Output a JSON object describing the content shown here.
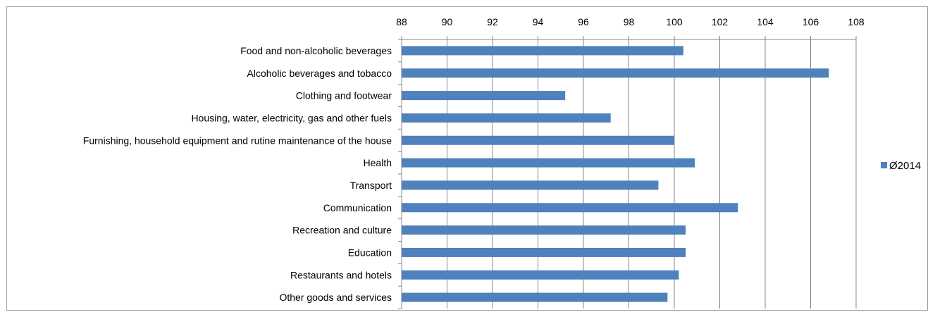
{
  "chart_data": {
    "type": "bar",
    "orientation": "horizontal",
    "title": "",
    "xlabel": "",
    "ylabel": "",
    "xlim": [
      88,
      108
    ],
    "x_ticks": [
      88,
      90,
      92,
      94,
      96,
      98,
      100,
      102,
      104,
      106,
      108
    ],
    "x_axis_position": "top",
    "grid": "vertical major gridlines",
    "legend_position": "right",
    "categories": [
      "Food and non-alcoholic beverages",
      "Alcoholic beverages and tobacco",
      "Clothing and footwear",
      "Housing, water, electricity, gas and other fuels",
      "Furnishing, household equipment and rutine maintenance of the house",
      "Health",
      "Transport",
      "Communication",
      "Recreation and culture",
      "Education",
      "Restaurants and hotels",
      "Other goods and services"
    ],
    "series": [
      {
        "name": "Ø2014",
        "color": "#4f81bd",
        "values": [
          100.4,
          106.8,
          95.2,
          97.2,
          100.0,
          100.9,
          99.3,
          102.8,
          100.5,
          100.5,
          100.2,
          99.7
        ]
      }
    ]
  }
}
